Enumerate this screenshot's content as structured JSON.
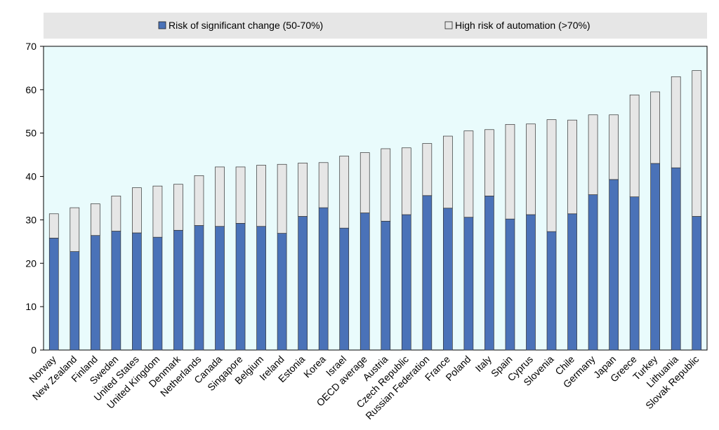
{
  "chart_data": {
    "type": "bar",
    "stacked": true,
    "title": "",
    "xlabel": "",
    "ylabel": "",
    "ylim": [
      0,
      70
    ],
    "yticks": [
      0,
      10,
      20,
      30,
      40,
      50,
      60,
      70
    ],
    "categories": [
      "Norway",
      "New Zealand",
      "Finland",
      "Sweden",
      "United States",
      "United Kingdom",
      "Denmark",
      "Netherlands",
      "Canada",
      "Singapore",
      "Belgium",
      "Ireland",
      "Estonia",
      "Korea",
      "Israel",
      "OECD average",
      "Austria",
      "Czech Republic",
      "Russian Federation",
      "France",
      "Poland",
      "Italy",
      "Spain",
      "Cyprus",
      "Slovenia",
      "Chile",
      "Germany",
      "Japan",
      "Greece",
      "Turkey",
      "Lithuania",
      "Slovak Republic"
    ],
    "series": [
      {
        "name": "Risk of significant change (50-70%)",
        "color": "#4a72b8",
        "values": [
          25.8,
          22.7,
          26.4,
          27.4,
          27.0,
          26.0,
          27.6,
          28.7,
          28.5,
          29.2,
          28.5,
          26.9,
          30.8,
          32.8,
          28.1,
          31.6,
          29.7,
          31.2,
          35.6,
          32.7,
          30.6,
          35.5,
          30.2,
          31.2,
          27.3,
          31.4,
          35.8,
          39.3,
          35.3,
          43.0,
          42.0,
          30.8
        ]
      },
      {
        "name": "High risk of automation (>70%)",
        "color": "#e6e6e6",
        "values": [
          5.6,
          10.1,
          7.3,
          8.1,
          10.4,
          11.8,
          10.6,
          11.5,
          13.7,
          13.0,
          14.1,
          15.9,
          12.3,
          10.4,
          16.6,
          13.9,
          16.7,
          15.4,
          12.0,
          16.6,
          19.9,
          15.3,
          21.8,
          20.9,
          25.8,
          21.6,
          18.4,
          14.9,
          23.5,
          16.5,
          21.0,
          33.6
        ]
      }
    ],
    "legend_position": "top",
    "plot_background": "#e9fbfc",
    "grid": false
  }
}
